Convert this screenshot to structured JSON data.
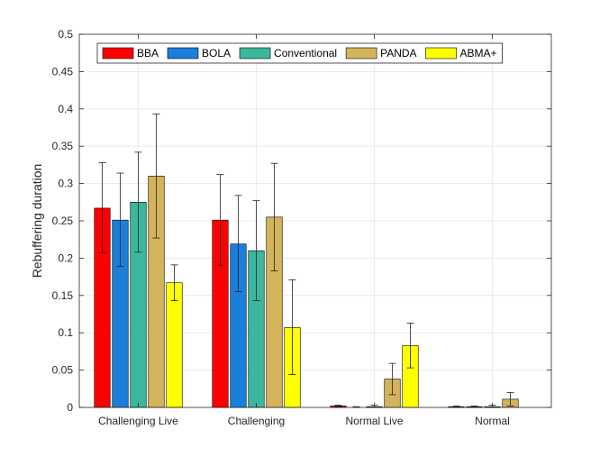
{
  "chart_data": {
    "type": "bar",
    "title": "",
    "xlabel": "",
    "ylabel": "Rebuffering duration",
    "ylim": [
      0,
      0.5
    ],
    "yticks": [
      "0",
      "0.05",
      "0.1",
      "0.15",
      "0.2",
      "0.25",
      "0.3",
      "0.35",
      "0.4",
      "0.45",
      "0.5"
    ],
    "grid": true,
    "legend_position": "top",
    "categories": [
      "Challenging Live",
      "Challenging",
      "Normal Live",
      "Normal"
    ],
    "series": [
      {
        "name": "BBA",
        "color": "#ff0000",
        "values": [
          0.267,
          0.251,
          0.002,
          0.001
        ],
        "err_low": [
          0.207,
          0.19,
          0.001,
          0.0
        ],
        "err_high": [
          0.328,
          0.312,
          0.003,
          0.002
        ]
      },
      {
        "name": "BOLA",
        "color": "#1a7fdb",
        "values": [
          0.251,
          0.219,
          0.0,
          0.001
        ],
        "err_low": [
          0.189,
          0.155,
          0.0,
          0.0
        ],
        "err_high": [
          0.314,
          0.284,
          0.001,
          0.002
        ]
      },
      {
        "name": "Conventional",
        "color": "#3bb79d",
        "values": [
          0.275,
          0.21,
          0.001,
          0.001
        ],
        "err_low": [
          0.208,
          0.143,
          0.0,
          0.0
        ],
        "err_high": [
          0.342,
          0.277,
          0.003,
          0.003
        ]
      },
      {
        "name": "PANDA",
        "color": "#d4b45a",
        "values": [
          0.31,
          0.255,
          0.038,
          0.011
        ],
        "err_low": [
          0.227,
          0.183,
          0.017,
          0.002
        ],
        "err_high": [
          0.393,
          0.327,
          0.059,
          0.02
        ]
      },
      {
        "name": "ABMA+",
        "color": "#ffff00",
        "values": [
          0.167,
          0.107,
          0.083,
          0.0
        ],
        "err_low": [
          0.143,
          0.044,
          0.053,
          0.0
        ],
        "err_high": [
          0.191,
          0.171,
          0.113,
          0.0
        ]
      }
    ]
  }
}
